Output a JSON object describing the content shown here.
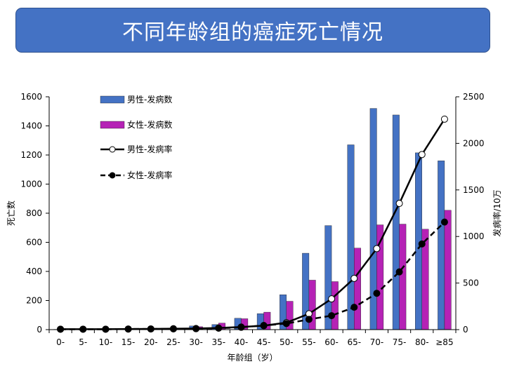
{
  "title": "不同年龄组的癌症死亡情况",
  "chart_data": {
    "type": "bar",
    "xlabel": "年龄组（岁）",
    "ylabel_left": "死亡数",
    "ylabel_right": "发病率/10万",
    "ylim_left": [
      0,
      1600
    ],
    "ylim_right": [
      0,
      2500
    ],
    "yticks_left": [
      0,
      200,
      400,
      600,
      800,
      1000,
      1200,
      1400,
      1600
    ],
    "yticks_right": [
      0,
      500,
      1000,
      1500,
      2000,
      2500
    ],
    "legend_position": "top-left",
    "grid": false,
    "categories": [
      "0-",
      "5-",
      "10-",
      "15-",
      "20-",
      "25-",
      "30-",
      "35-",
      "40-",
      "45-",
      "50-",
      "55-",
      "60-",
      "65-",
      "70-",
      "75-",
      "80-",
      "≥85"
    ],
    "series": [
      {
        "name": "男性-发病数",
        "kind": "bar",
        "axis": "left",
        "color": "#4472c4",
        "values": [
          2,
          2,
          2,
          3,
          5,
          7,
          25,
          35,
          78,
          110,
          240,
          525,
          715,
          1270,
          1520,
          1475,
          1215,
          1160
        ]
      },
      {
        "name": "女性-发病数",
        "kind": "bar",
        "axis": "left",
        "color": "#b522b5",
        "values": [
          1,
          1,
          2,
          3,
          5,
          6,
          20,
          45,
          75,
          120,
          195,
          340,
          330,
          560,
          720,
          725,
          690,
          820
        ]
      },
      {
        "name": "男性-发病率",
        "kind": "line",
        "axis": "right",
        "style": "solid",
        "marker": "open-circle",
        "color": "#000000",
        "values": [
          5,
          5,
          5,
          7,
          8,
          10,
          12,
          18,
          28,
          42,
          75,
          170,
          330,
          550,
          870,
          1355,
          1880,
          2260
        ]
      },
      {
        "name": "女性-发病率",
        "kind": "line",
        "axis": "right",
        "style": "dashed",
        "marker": "filled-circle",
        "color": "#000000",
        "values": [
          4,
          4,
          4,
          6,
          7,
          8,
          10,
          15,
          25,
          45,
          65,
          110,
          150,
          240,
          390,
          620,
          920,
          1155
        ]
      }
    ]
  }
}
